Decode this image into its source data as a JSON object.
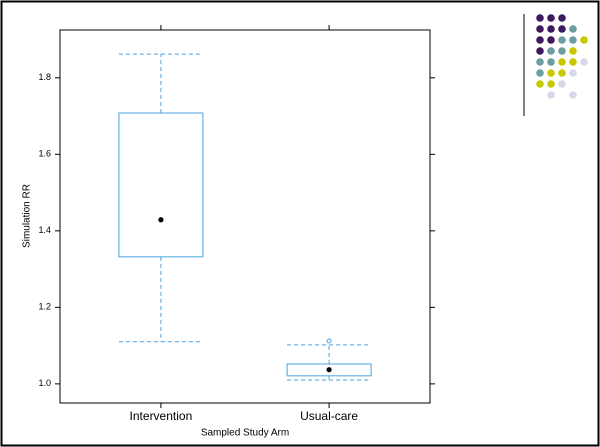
{
  "chart_data": {
    "type": "box",
    "y_label": "Simulation RR",
    "x_label": "Sampled Study Arm",
    "categories": [
      "Intervention",
      "Usual-care"
    ],
    "color": "#4aa3df",
    "boxes": [
      {
        "whisker_low": 1.11,
        "q1": 1.332,
        "median": 1.429,
        "q3": 1.708,
        "whisker_high": 1.862,
        "outliers": []
      },
      {
        "whisker_low": 1.01,
        "q1": 1.021,
        "median": 1.037,
        "q3": 1.052,
        "whisker_high": 1.102,
        "outliers": [
          1.112
        ]
      }
    ],
    "ylim": [
      0.95,
      1.925
    ],
    "yticks": [
      {
        "value": 1,
        "label": "1.0"
      },
      1.2,
      1.4,
      1.6,
      1.8
    ]
  }
}
